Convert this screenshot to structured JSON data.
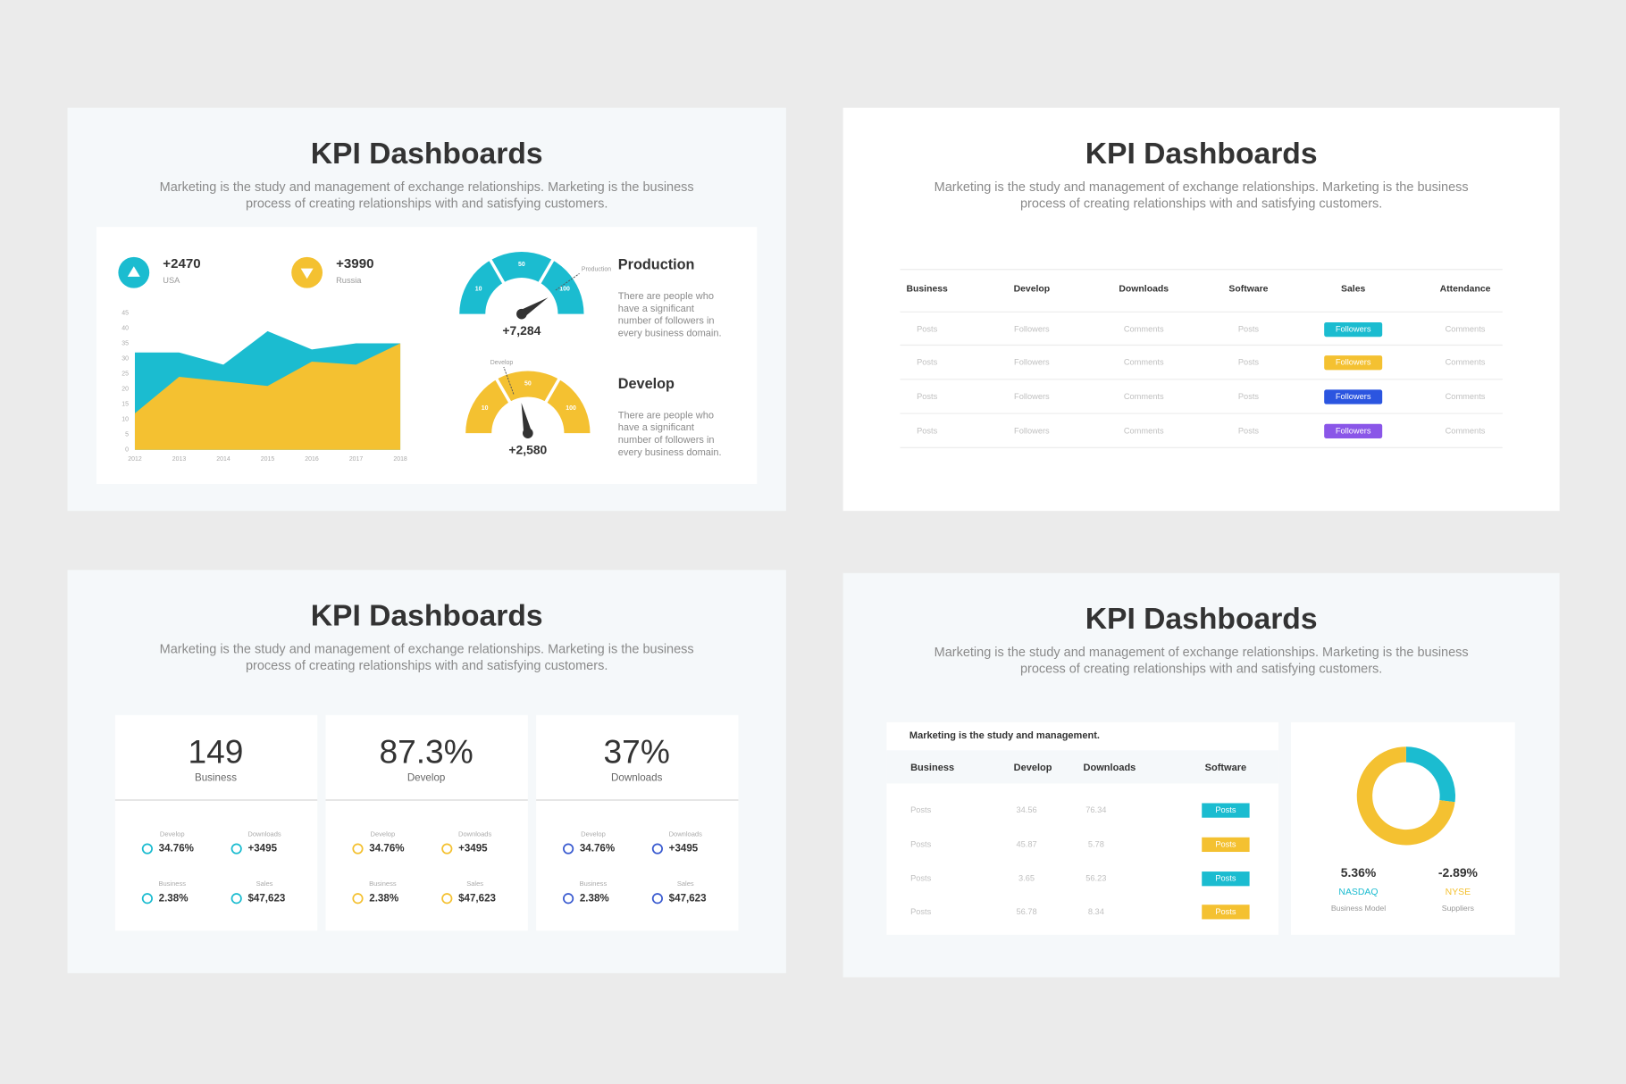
{
  "slides": [
    {
      "title": "KPI Dashboards",
      "subtitle": [
        "Marketing is the study and management of exchange relationships. Marketing is the business",
        "process of creating relationships with and satisfying customers."
      ],
      "kpis": [
        {
          "value": "+2470",
          "label": "USA",
          "color": "#1bbcd0"
        },
        {
          "value": "+3990",
          "label": "Russia",
          "color": "#f4c131"
        }
      ],
      "chart_data": {
        "type": "area",
        "x": [
          2012,
          2013,
          2014,
          2015,
          2016,
          2017,
          2018
        ],
        "xlim": [
          2012,
          2018
        ],
        "ylim": [
          0,
          45
        ],
        "yticks": [
          0,
          5,
          10,
          15,
          20,
          25,
          30,
          35,
          40,
          45
        ],
        "series": [
          {
            "color": "#1bbcd0",
            "values": [
              32,
              32,
              28,
              39,
              33,
              35,
              35
            ]
          },
          {
            "color": "#f4c131",
            "values": [
              12,
              24,
              22.5,
              21,
              29,
              28,
              35
            ]
          }
        ]
      },
      "gauges": [
        {
          "color": "#1bbcd0",
          "scale": [
            10,
            50,
            100
          ],
          "marker": "Production",
          "value": "+7,284",
          "title": "Production",
          "text": [
            "There are people who",
            "have a significant",
            "number of followers in",
            "every business domain."
          ]
        },
        {
          "color": "#f4c131",
          "scale": [
            10,
            50,
            100
          ],
          "marker": "Develop",
          "value": "+2,580",
          "title": "Develop",
          "text": [
            "There are people who",
            "have a significant",
            "number of followers in",
            "every business domain."
          ]
        }
      ]
    },
    {
      "title": "KPI Dashboards",
      "subtitle": [
        "Marketing is the study and management of exchange relationships. Marketing is the business",
        "process of creating relationships with and satisfying customers."
      ],
      "table": {
        "header": [
          "Business",
          "Develop",
          "Downloads",
          "Software",
          "Sales",
          "Attendance"
        ],
        "rows": [
          [
            "Posts",
            "Followers",
            "Comments",
            "Posts",
            "Followers",
            "Comments"
          ],
          [
            "Posts",
            "Followers",
            "Comments",
            "Posts",
            "Followers",
            "Comments"
          ],
          [
            "Posts",
            "Followers",
            "Comments",
            "Posts",
            "Followers",
            "Comments"
          ],
          [
            "Posts",
            "Followers",
            "Comments",
            "Posts",
            "Followers",
            "Comments"
          ]
        ],
        "badge_column": 4,
        "badge_colors": [
          "#1bbcd0",
          "#f4c131",
          "#2b55e0",
          "#8a56e8"
        ]
      }
    },
    {
      "title": "KPI Dashboards",
      "subtitle": [
        "Marketing is the study and management of exchange relationships. Marketing is the business",
        "process of creating relationships with and satisfying customers."
      ],
      "cards": [
        {
          "value": "149",
          "label": "Business",
          "icon_color": "#1bbcd0",
          "stats": [
            {
              "label": "Develop",
              "value": "34.76%"
            },
            {
              "label": "Downloads",
              "value": "+3495"
            },
            {
              "label": "Business",
              "value": "2.38%"
            },
            {
              "label": "Sales",
              "value": "$47,623"
            }
          ]
        },
        {
          "value": "87.3%",
          "label": "Develop",
          "icon_color": "#f4c131",
          "stats": [
            {
              "label": "Develop",
              "value": "34.76%"
            },
            {
              "label": "Downloads",
              "value": "+3495"
            },
            {
              "label": "Business",
              "value": "2.38%"
            },
            {
              "label": "Sales",
              "value": "$47,623"
            }
          ]
        },
        {
          "value": "37%",
          "label": "Downloads",
          "icon_color": "#3a5bd0",
          "stats": [
            {
              "label": "Develop",
              "value": "34.76%"
            },
            {
              "label": "Downloads",
              "value": "+3495"
            },
            {
              "label": "Business",
              "value": "2.38%"
            },
            {
              "label": "Sales",
              "value": "$47,623"
            }
          ]
        }
      ]
    },
    {
      "title": "KPI Dashboards",
      "subtitle": [
        "Marketing is the study and management of exchange relationships. Marketing is the business",
        "process of creating relationships with and satisfying customers."
      ],
      "table": {
        "caption": "Marketing is the study and management.",
        "header": [
          "Business",
          "Develop",
          "Downloads",
          "Software"
        ],
        "rows": [
          [
            "Posts",
            "34.56",
            "76.34",
            "Posts"
          ],
          [
            "Posts",
            "45.87",
            "5.78",
            "Posts"
          ],
          [
            "Posts",
            "3.65",
            "56.23",
            "Posts"
          ],
          [
            "Posts",
            "56.78",
            "8.34",
            "Posts"
          ]
        ],
        "badge_column": 3,
        "badge_colors": [
          "#1bbcd0",
          "#f4c131",
          "#1bbcd0",
          "#f4c131"
        ]
      },
      "chart_data": {
        "type": "donut",
        "values": [
          27,
          73
        ],
        "colors": [
          "#1bbcd0",
          "#f4c131"
        ]
      },
      "stats": [
        {
          "value": "5.36%",
          "name": "NASDAQ",
          "label": "Business Model",
          "color": "#1bbcd0"
        },
        {
          "value": "-2.89%",
          "name": "NYSE",
          "label": "Suppliers",
          "color": "#f4c131"
        }
      ]
    }
  ]
}
